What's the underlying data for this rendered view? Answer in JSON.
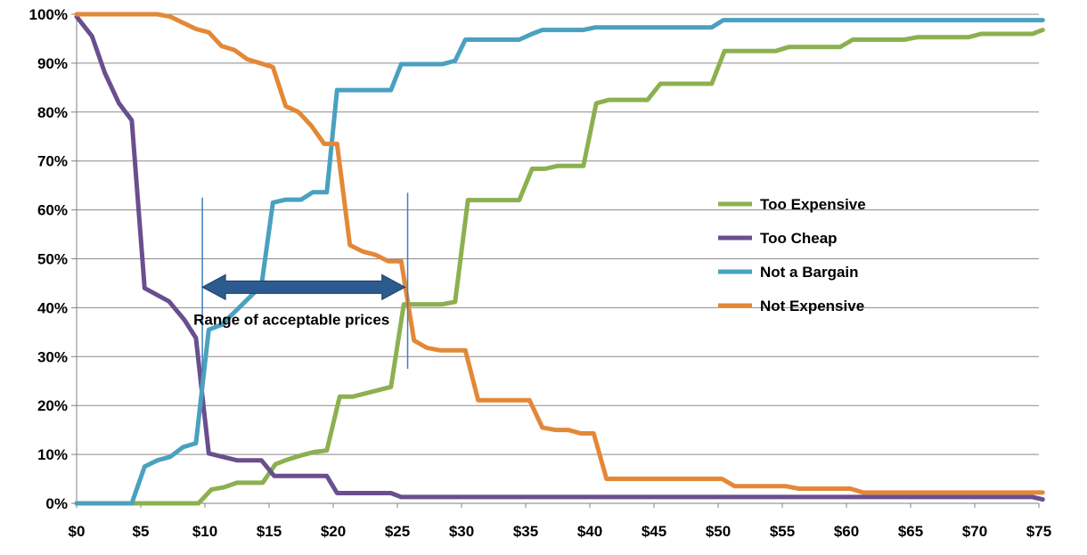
{
  "chart_data": {
    "type": "line",
    "title": "",
    "xlabel": "",
    "ylabel": "",
    "xlim": [
      0,
      75
    ],
    "ylim": [
      0,
      100
    ],
    "x_ticks": [
      0,
      5,
      10,
      15,
      20,
      25,
      30,
      35,
      40,
      45,
      50,
      55,
      60,
      65,
      70,
      75
    ],
    "x_tick_labels": [
      "$0",
      "$5",
      "$10",
      "$15",
      "$20",
      "$25",
      "$30",
      "$35",
      "$40",
      "$45",
      "$50",
      "$55",
      "$60",
      "$65",
      "$70",
      "$75"
    ],
    "y_ticks": [
      0,
      10,
      20,
      30,
      40,
      50,
      60,
      70,
      80,
      90,
      100
    ],
    "y_tick_labels": [
      "0%",
      "10%",
      "20%",
      "30%",
      "40%",
      "50%",
      "60%",
      "70%",
      "80%",
      "90%",
      "100%"
    ],
    "grid": "horizontal",
    "legend_position": "right",
    "series": [
      {
        "name": "Too Expensive",
        "color": "#8cb04f",
        "points": [
          [
            0,
            0
          ],
          [
            9.5,
            0
          ],
          [
            10.5,
            2.8
          ],
          [
            11.5,
            3.3
          ],
          [
            12.5,
            4.2
          ],
          [
            14.5,
            4.2
          ],
          [
            15.5,
            8
          ],
          [
            16.5,
            9
          ],
          [
            17.5,
            9.8
          ],
          [
            18.5,
            10.5
          ],
          [
            19.5,
            10.8
          ],
          [
            20.5,
            21.8
          ],
          [
            21.5,
            21.8
          ],
          [
            24.5,
            23.8
          ],
          [
            25.5,
            40.7
          ],
          [
            28.5,
            40.7
          ],
          [
            29.5,
            41.2
          ],
          [
            30.5,
            62
          ],
          [
            34.5,
            62
          ],
          [
            35.5,
            68.4
          ],
          [
            36.5,
            68.4
          ],
          [
            37.5,
            69
          ],
          [
            39.5,
            69
          ],
          [
            40.5,
            81.8
          ],
          [
            41.5,
            82.5
          ],
          [
            44.5,
            82.5
          ],
          [
            45.5,
            85.8
          ],
          [
            49.5,
            85.8
          ],
          [
            50.5,
            92.5
          ],
          [
            54.5,
            92.5
          ],
          [
            55.5,
            93.3
          ],
          [
            59.5,
            93.3
          ],
          [
            60.5,
            94.8
          ],
          [
            64.5,
            94.8
          ],
          [
            65.5,
            95.3
          ],
          [
            69.5,
            95.3
          ],
          [
            70.5,
            96.0
          ],
          [
            74.5,
            96.0
          ],
          [
            75.3,
            96.8
          ]
        ]
      },
      {
        "name": "Too Cheap",
        "color": "#6a4f8e",
        "points": [
          [
            0,
            99.5
          ],
          [
            1.2,
            95.5
          ],
          [
            2.2,
            88
          ],
          [
            3.3,
            81.8
          ],
          [
            4.3,
            78.3
          ],
          [
            5.3,
            44
          ],
          [
            7.2,
            41.3
          ],
          [
            8.4,
            37.5
          ],
          [
            9.3,
            33.8
          ],
          [
            10.3,
            10.2
          ],
          [
            12.5,
            8.8
          ],
          [
            14.4,
            8.8
          ],
          [
            15.4,
            5.6
          ],
          [
            19.5,
            5.6
          ],
          [
            20.3,
            2.1
          ],
          [
            24.5,
            2.1
          ],
          [
            25.3,
            1.3
          ],
          [
            74.5,
            1.3
          ],
          [
            75.3,
            0.8
          ]
        ]
      },
      {
        "name": "Not a Bargain",
        "color": "#4aa1bf",
        "points": [
          [
            0,
            0
          ],
          [
            4.3,
            0
          ],
          [
            5.3,
            7.5
          ],
          [
            6.3,
            8.8
          ],
          [
            7.3,
            9.5
          ],
          [
            8.3,
            11.5
          ],
          [
            9.3,
            12.3
          ],
          [
            10.3,
            35.5
          ],
          [
            11.3,
            36.5
          ],
          [
            14.4,
            44.5
          ],
          [
            15.3,
            61.5
          ],
          [
            16.3,
            62.1
          ],
          [
            17.5,
            62.1
          ],
          [
            18.4,
            63.6
          ],
          [
            19.5,
            63.6
          ],
          [
            20.3,
            84.5
          ],
          [
            24.5,
            84.5
          ],
          [
            25.3,
            89.8
          ],
          [
            28.5,
            89.8
          ],
          [
            29.5,
            90.5
          ],
          [
            30.3,
            94.8
          ],
          [
            34.5,
            94.8
          ],
          [
            35.5,
            96
          ],
          [
            36.3,
            96.8
          ],
          [
            39.5,
            96.8
          ],
          [
            40.4,
            97.3
          ],
          [
            49.5,
            97.3
          ],
          [
            50.4,
            98.8
          ],
          [
            75.3,
            98.8
          ]
        ]
      },
      {
        "name": "Not Expensive",
        "color": "#e38837",
        "points": [
          [
            0,
            100
          ],
          [
            6.3,
            100
          ],
          [
            7.3,
            99.5
          ],
          [
            8.5,
            98
          ],
          [
            9.3,
            97
          ],
          [
            10.3,
            96.3
          ],
          [
            11.3,
            93.5
          ],
          [
            12.3,
            92.7
          ],
          [
            13.3,
            90.8
          ],
          [
            15.3,
            89.2
          ],
          [
            16.3,
            81.2
          ],
          [
            17.3,
            80
          ],
          [
            18.3,
            77.2
          ],
          [
            19.3,
            73.5
          ],
          [
            20.3,
            73.5
          ],
          [
            21.3,
            52.8
          ],
          [
            22.3,
            51.5
          ],
          [
            23.3,
            50.8
          ],
          [
            24.3,
            49.5
          ],
          [
            25.3,
            49.5
          ],
          [
            26.3,
            33.3
          ],
          [
            27.3,
            31.8
          ],
          [
            28.3,
            31.3
          ],
          [
            30.3,
            31.3
          ],
          [
            31.3,
            21.1
          ],
          [
            34.3,
            21.1
          ],
          [
            35.3,
            21.1
          ],
          [
            36.3,
            15.5
          ],
          [
            37.3,
            15
          ],
          [
            38.3,
            15
          ],
          [
            39.3,
            14.3
          ],
          [
            40.3,
            14.3
          ],
          [
            41.3,
            5
          ],
          [
            50.3,
            5
          ],
          [
            51.3,
            3.5
          ],
          [
            55.3,
            3.5
          ],
          [
            56.3,
            3
          ],
          [
            60.3,
            3
          ],
          [
            61.3,
            2.2
          ],
          [
            75.3,
            2.2
          ]
        ]
      }
    ],
    "annotations": {
      "range_label": "Range of acceptable prices",
      "range_lines_x": [
        9.8,
        25.8
      ],
      "range_lines_y": [
        [
          62.5,
          27
        ],
        [
          63.5,
          27.5
        ]
      ],
      "arrow_x": [
        9.8,
        25.6
      ],
      "arrow_y": 44.2,
      "arrow_color": "#2d5b8f",
      "line_color": "#3f7fbf"
    }
  }
}
